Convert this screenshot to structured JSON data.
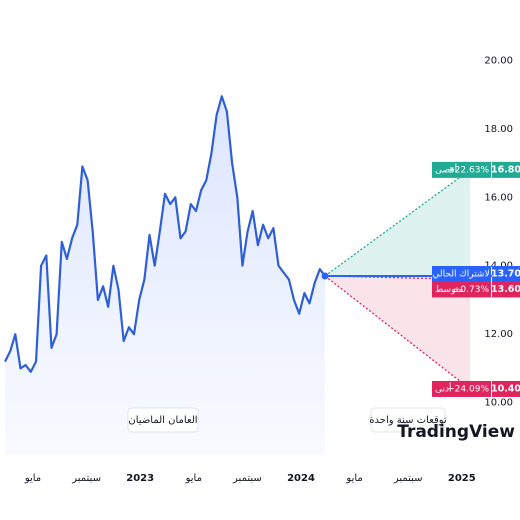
{
  "chart_data": {
    "type": "line",
    "series": [
      {
        "name": "العامان الماضيان",
        "color": "#2f5fd6",
        "values": [
          11.2,
          11.5,
          12.0,
          11.0,
          11.1,
          10.9,
          11.2,
          14.0,
          14.3,
          11.6,
          12.0,
          14.7,
          14.2,
          14.8,
          15.2,
          16.9,
          16.5,
          15.0,
          13.0,
          13.4,
          12.8,
          14.0,
          13.3,
          11.8,
          12.2,
          12.0,
          13.0,
          13.6,
          14.9,
          14.0,
          15.0,
          16.1,
          15.8,
          16.0,
          14.8,
          15.0,
          15.8,
          15.6,
          16.2,
          16.5,
          17.3,
          18.4,
          18.95,
          18.5,
          17.0,
          16.0,
          14.0,
          15.0,
          15.6,
          14.6,
          15.2,
          14.8,
          15.1,
          14.0,
          13.8,
          13.6,
          13.0,
          12.6,
          13.2,
          12.9,
          13.5,
          13.9,
          13.7
        ]
      }
    ],
    "x_labels": [
      "مايو",
      "سبتمبر",
      "2023",
      "مايو",
      "سبتمبر",
      "2024",
      "مايو",
      "سبتمبر",
      "2025"
    ],
    "ylim": [
      8.5,
      21.5
    ],
    "yticks": [
      {
        "value": 10,
        "label": "10.00"
      },
      {
        "value": 12,
        "label": "12.00"
      },
      {
        "value": 14,
        "label": "14.00"
      },
      {
        "value": 16,
        "label": "16.00"
      },
      {
        "value": 18,
        "label": "18.00"
      },
      {
        "value": 20,
        "label": "20.00"
      }
    ],
    "forecast": {
      "current": {
        "name": "لاشتراك الحالي",
        "value": 13.7,
        "value_label": "13.70",
        "color": "#2962ff"
      },
      "high": {
        "name": "أقصى",
        "change": "+22.63%",
        "value": 16.8,
        "value_label": "16.80",
        "color": "#22ab94"
      },
      "average": {
        "name": "متوسط",
        "change": "−0.73%",
        "value": 13.6,
        "value_label": "13.60",
        "color": "#e0245e"
      },
      "low": {
        "name": "أدنى",
        "change": "−24.09%",
        "value": 10.4,
        "value_label": "10.40",
        "color": "#e0245e"
      }
    },
    "annotations": [
      "العامان الماضيان",
      "توقعات سنة واحدة"
    ],
    "logo": "TradingView"
  }
}
